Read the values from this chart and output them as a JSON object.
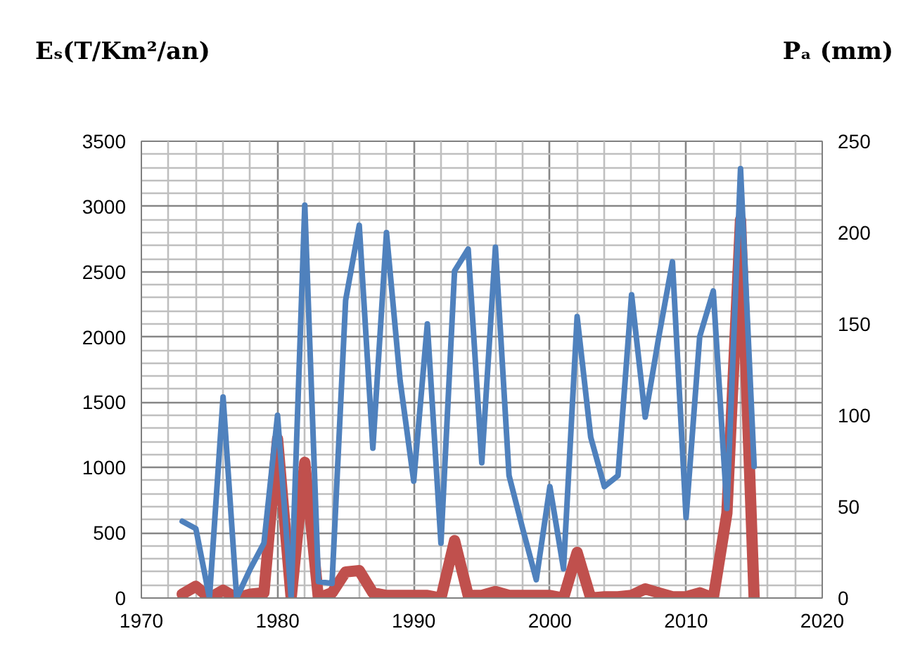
{
  "chart_data": {
    "type": "line",
    "title": "Eₛ(T/Km²/an)",
    "y2label": "Pₐ (mm)",
    "x": [
      1973,
      1974,
      1975,
      1976,
      1977,
      1978,
      1979,
      1980,
      1981,
      1982,
      1983,
      1984,
      1985,
      1986,
      1987,
      1988,
      1989,
      1990,
      1991,
      1992,
      1993,
      1994,
      1995,
      1996,
      1997,
      1998,
      1999,
      2000,
      2001,
      2002,
      2003,
      2004,
      2005,
      2006,
      2007,
      2008,
      2009,
      2010,
      2011,
      2012,
      2013,
      2014,
      2015
    ],
    "series": [
      {
        "color": "#c0504d",
        "values": [
          30,
          90,
          0,
          60,
          0,
          30,
          40,
          1220,
          0,
          1040,
          0,
          40,
          200,
          210,
          40,
          20,
          20,
          20,
          20,
          0,
          440,
          20,
          20,
          50,
          20,
          20,
          20,
          20,
          0,
          350,
          0,
          10,
          10,
          20,
          70,
          40,
          10,
          10,
          40,
          0,
          650,
          2900,
          0
        ]
      },
      {
        "color": "#4f81bd",
        "axis": "y2",
        "values": [
          42,
          38,
          0,
          110,
          0,
          16,
          30,
          100,
          0,
          215,
          9,
          8,
          163,
          204,
          82,
          200,
          119,
          64,
          150,
          30,
          179,
          191,
          74,
          192,
          67,
          38,
          10,
          61,
          16,
          154,
          88,
          61,
          67,
          166,
          99,
          143,
          184,
          44,
          143,
          168,
          49,
          235,
          72
        ]
      }
    ],
    "xlim": [
      1970,
      2020
    ],
    "xticks": [
      1970,
      1980,
      1990,
      2000,
      2010,
      2020
    ],
    "ylim": [
      0,
      3500
    ],
    "yticks": [
      0,
      500,
      1000,
      1500,
      2000,
      2500,
      3000,
      3500
    ],
    "y2lim": [
      0,
      250
    ],
    "y2ticks": [
      0,
      50,
      100,
      150,
      200,
      250
    ],
    "grid": true,
    "marker": "none",
    "line_style": "solid"
  }
}
